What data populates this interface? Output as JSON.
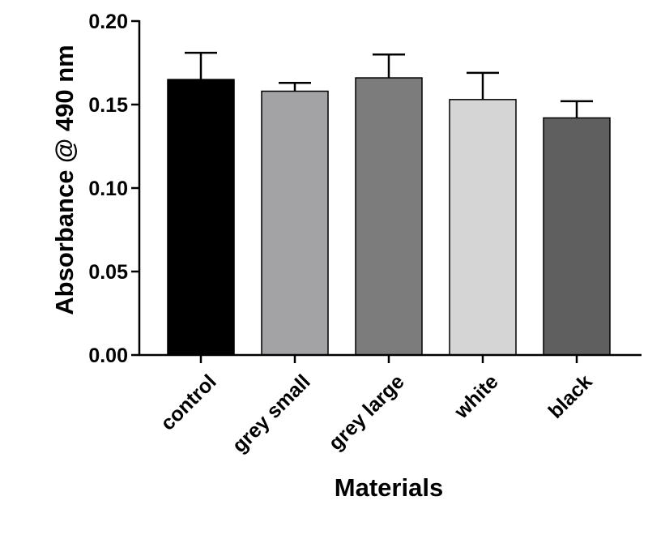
{
  "chart_data": {
    "type": "bar",
    "title": "",
    "xlabel": "Materials",
    "ylabel": "Absorbance @ 490 nm",
    "ylim": [
      0,
      0.2
    ],
    "yticks": [
      "0.00",
      "0.05",
      "0.10",
      "0.15",
      "0.20"
    ],
    "ytick_values": [
      0,
      0.05,
      0.1,
      0.15,
      0.2
    ],
    "categories": [
      "control",
      "grey small",
      "grey large",
      "white",
      "black"
    ],
    "values": [
      0.165,
      0.158,
      0.166,
      0.153,
      0.142
    ],
    "errors": [
      0.016,
      0.005,
      0.014,
      0.016,
      0.01
    ],
    "bar_colors": [
      "#000000",
      "#a3a3a5",
      "#7c7c7c",
      "#d5d5d5",
      "#5f5f5f"
    ],
    "grid": false,
    "legend": "none"
  }
}
